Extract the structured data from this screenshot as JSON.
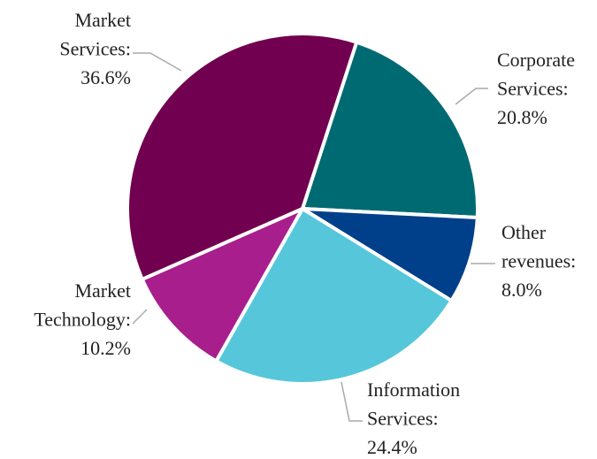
{
  "chart_data": {
    "type": "pie",
    "categories": [
      "Corporate Services:",
      "Other revenues:",
      "Information Services:",
      "Market Technology:",
      "Market Services:"
    ],
    "values": [
      20.8,
      8.0,
      24.4,
      10.2,
      36.6
    ],
    "value_labels": [
      "20.8%",
      "8.0%",
      "24.4%",
      "10.2%",
      "36.6%"
    ],
    "colors": [
      "#006a72",
      "#003f8a",
      "#56c7da",
      "#a81e8c",
      "#710050"
    ]
  }
}
